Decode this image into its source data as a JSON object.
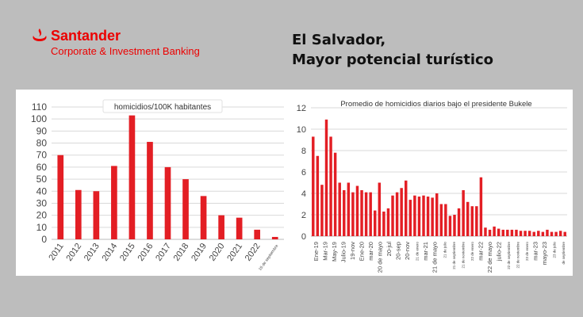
{
  "header": {
    "brand": "Santander",
    "division": "Corporate & Investment Banking",
    "title_line1": "El Salvador,",
    "title_line2": "Mayor potencial turístico",
    "brand_color": "#ec0000"
  },
  "chart_data": [
    {
      "type": "bar",
      "title": "homicidios/100K habitantes",
      "categories": [
        "2011",
        "2012",
        "2013",
        "2014",
        "2015",
        "2016",
        "2017",
        "2018",
        "2019",
        "2020",
        "2021",
        "2022",
        "15 de septiembre"
      ],
      "values": [
        70,
        41,
        40,
        61,
        103,
        81,
        60,
        50,
        36,
        20,
        18,
        8,
        2
      ],
      "ylim": [
        0,
        110
      ],
      "yticks": [
        0,
        10,
        20,
        30,
        40,
        50,
        60,
        70,
        80,
        90,
        100,
        110
      ],
      "grid": true,
      "color": "#e31e24"
    },
    {
      "type": "bar",
      "title": "Promedio de homicidios diarios bajo el presidente Bukele",
      "values": [
        9.3,
        7.5,
        4.8,
        10.9,
        9.3,
        7.8,
        5.0,
        4.3,
        5.0,
        4.1,
        4.7,
        4.3,
        4.1,
        4.1,
        2.4,
        5.0,
        2.3,
        2.6,
        3.8,
        4.1,
        4.5,
        5.2,
        3.4,
        3.8,
        3.7,
        3.8,
        3.7,
        3.6,
        4.0,
        3.0,
        3.0,
        1.9,
        2.0,
        2.6,
        4.3,
        3.2,
        2.8,
        2.8,
        5.5,
        0.8,
        0.6,
        0.9,
        0.7,
        0.6,
        0.6,
        0.6,
        0.6,
        0.5,
        0.5,
        0.5,
        0.4,
        0.5,
        0.4,
        0.6,
        0.4,
        0.4,
        0.5,
        0.4
      ],
      "x_labels": [
        "Ene-19",
        "Mar-19",
        "May-19",
        "Julio-19",
        "19-nov",
        "Ene-20",
        "mar-20",
        "20 de mayo",
        "20-jul",
        "20-sep",
        "20-nov",
        "21 de enero",
        "mar-21",
        "21 de mayo",
        "21 de julio",
        "21 de septiembre",
        "21 de noviembre",
        "22 de enero",
        "mar-22",
        "22 de mayo",
        "julio-22",
        "22 de septiembre",
        "22 de noviembre",
        "23 de enero",
        "mar-23",
        "mayo-23",
        "23 de julio",
        "de septiembre"
      ],
      "ylim": [
        0,
        12
      ],
      "yticks": [
        0,
        2,
        4,
        6,
        8,
        10,
        12
      ],
      "grid": true,
      "color": "#e31e24"
    }
  ]
}
